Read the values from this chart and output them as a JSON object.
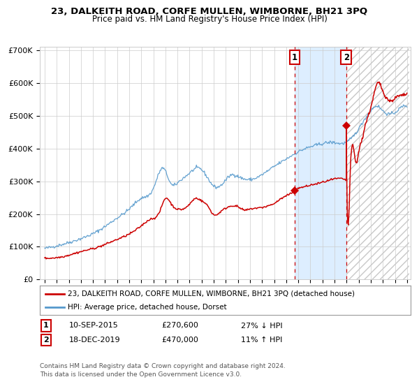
{
  "title1": "23, DALKEITH ROAD, CORFE MULLEN, WIMBORNE, BH21 3PQ",
  "title2": "Price paid vs. HM Land Registry's House Price Index (HPI)",
  "legend_line1": "23, DALKEITH ROAD, CORFE MULLEN, WIMBORNE, BH21 3PQ (detached house)",
  "legend_line2": "HPI: Average price, detached house, Dorset",
  "sale1_year": 2015.71,
  "sale1_price": 270600,
  "sale2_year": 2019.97,
  "sale2_price": 470000,
  "red_color": "#cc0000",
  "blue_color": "#5599cc",
  "shade_color": "#ddeeff",
  "grid_color": "#cccccc",
  "ann1_text1": "10-SEP-2015",
  "ann1_text2": "£270,600",
  "ann1_text3": "27% ↓ HPI",
  "ann2_text1": "18-DEC-2019",
  "ann2_text2": "£470,000",
  "ann2_text3": "11% ↑ HPI",
  "footer": "Contains HM Land Registry data © Crown copyright and database right 2024.\nThis data is licensed under the Open Government Licence v3.0."
}
